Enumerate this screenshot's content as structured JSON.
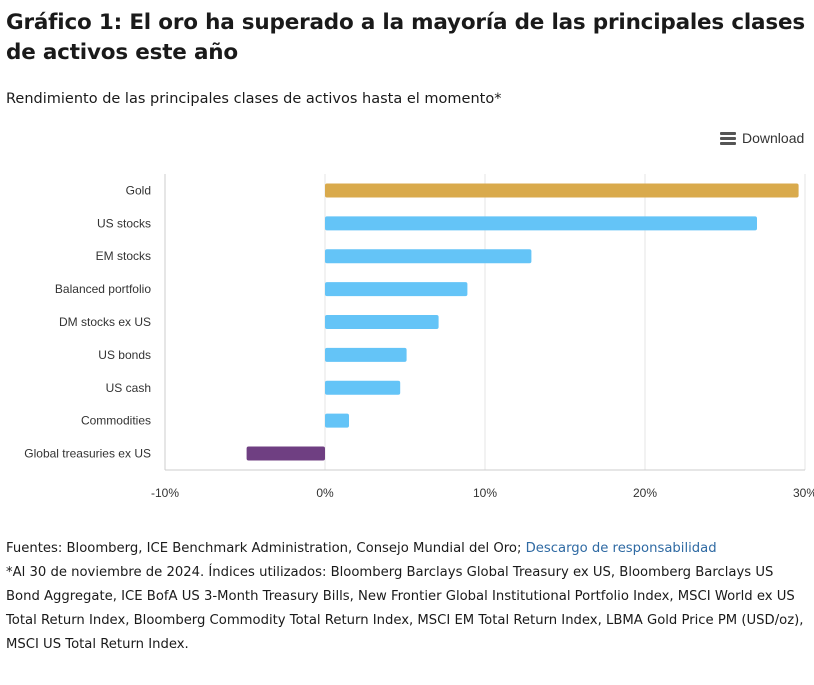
{
  "title": "Gráfico 1: El oro ha superado a la mayoría de las principales clases de activos este año",
  "subtitle": "Rendimiento de las principales clases de activos hasta el momento*",
  "download_label": "Download",
  "sources": {
    "prefix": "Fuentes: Bloomberg, ICE Benchmark Administration, Consejo Mundial del Oro; ",
    "link_label": "Descargo de responsabilidad"
  },
  "footnote": "*Al 30 de noviembre de 2024. Índices utilizados: Bloomberg Barclays Global Treasury ex US, Bloomberg Barclays US Bond Aggregate, ICE BofA US 3-Month Treasury Bills, New Frontier Global Institutional Portfolio Index, MSCI World ex US Total Return Index, Bloomberg Commodity Total Return Index, MSCI EM Total Return Index, LBMA Gold Price PM (USD/oz), MSCI US Total Return Index.",
  "colors": {
    "gold": "#d9aa4c",
    "positive": "#64c4f7",
    "negative": "#6f3f82",
    "grid": "#e6e6e6",
    "axis_text": "#333333"
  },
  "chart_data": {
    "type": "bar",
    "orientation": "horizontal",
    "categories": [
      "Gold",
      "US stocks",
      "EM stocks",
      "Balanced portfolio",
      "DM stocks ex US",
      "US bonds",
      "US cash",
      "Commodities",
      "Global treasuries ex US"
    ],
    "values": [
      29.6,
      27.0,
      12.9,
      8.9,
      7.1,
      5.1,
      4.7,
      1.5,
      -4.9
    ],
    "bar_colors": [
      "gold",
      "positive",
      "positive",
      "positive",
      "positive",
      "positive",
      "positive",
      "positive",
      "negative"
    ],
    "xlim": [
      -10,
      30
    ],
    "xticks": [
      -10,
      0,
      10,
      20,
      30
    ],
    "xtick_labels": [
      "-10%",
      "0%",
      "10%",
      "20%",
      "30%"
    ],
    "grid": true
  }
}
